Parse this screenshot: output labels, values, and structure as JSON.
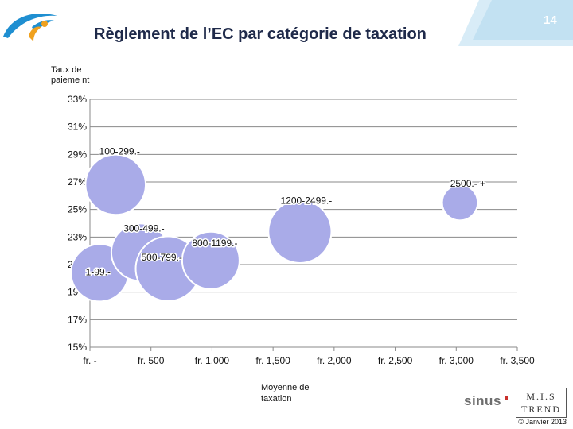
{
  "slide": {
    "title": "Règlement de l’EC par catégorie de taxation",
    "page_number": "14",
    "y_axis_label": "Taux de paieme nt",
    "x_axis_label": "Moyenne de taxation",
    "sinus_logo": "sinus",
    "mis_logo_top": "M.I.S",
    "mis_logo_bottom": "TREND",
    "copyright": "©  Janvier 2013"
  },
  "colors": {
    "bubble_fill": "#a9abe8",
    "bubble_stroke": "#ffffff",
    "title": "#1f2a4a",
    "badge": "#c2e1f2"
  },
  "chart_data": {
    "type": "bubble",
    "title": "Règlement de l’EC par catégorie de taxation",
    "xlabel": "Moyenne de taxation",
    "ylabel": "Taux de paieme nt",
    "xlim": [
      0,
      3500
    ],
    "ylim": [
      0.15,
      0.33
    ],
    "x_ticks": [
      0,
      500,
      1000,
      1500,
      2000,
      2500,
      3000,
      3500
    ],
    "x_tick_labels": [
      "fr.  -",
      "fr.  500",
      "fr.  1,000",
      "fr.  1,500",
      "fr.  2,000",
      "fr.  2,500",
      "fr.  3,000",
      "fr.  3,500"
    ],
    "y_ticks": [
      0.15,
      0.17,
      0.19,
      0.21,
      0.23,
      0.25,
      0.27,
      0.29,
      0.31,
      0.33
    ],
    "y_tick_labels": [
      "15%",
      "17%",
      "19%",
      "21%",
      "23%",
      "25%",
      "27%",
      "29%",
      "31%",
      "33%"
    ],
    "grid": "horizontal",
    "points": [
      {
        "label": "1-99.-",
        "x": 80,
        "y": 0.204,
        "size": 1.0
      },
      {
        "label": "100-299.-",
        "x": 210,
        "y": 0.268,
        "size": 1.05
      },
      {
        "label": "300-499.-",
        "x": 410,
        "y": 0.219,
        "size": 1.0
      },
      {
        "label": "500-799.-",
        "x": 640,
        "y": 0.207,
        "size": 1.13
      },
      {
        "label": "800-1199.-",
        "x": 990,
        "y": 0.213,
        "size": 1.0
      },
      {
        "label": "1200-2499.-",
        "x": 1720,
        "y": 0.234,
        "size": 1.1
      },
      {
        "label": "2500.- +",
        "x": 3030,
        "y": 0.255,
        "size": 0.62
      }
    ]
  }
}
